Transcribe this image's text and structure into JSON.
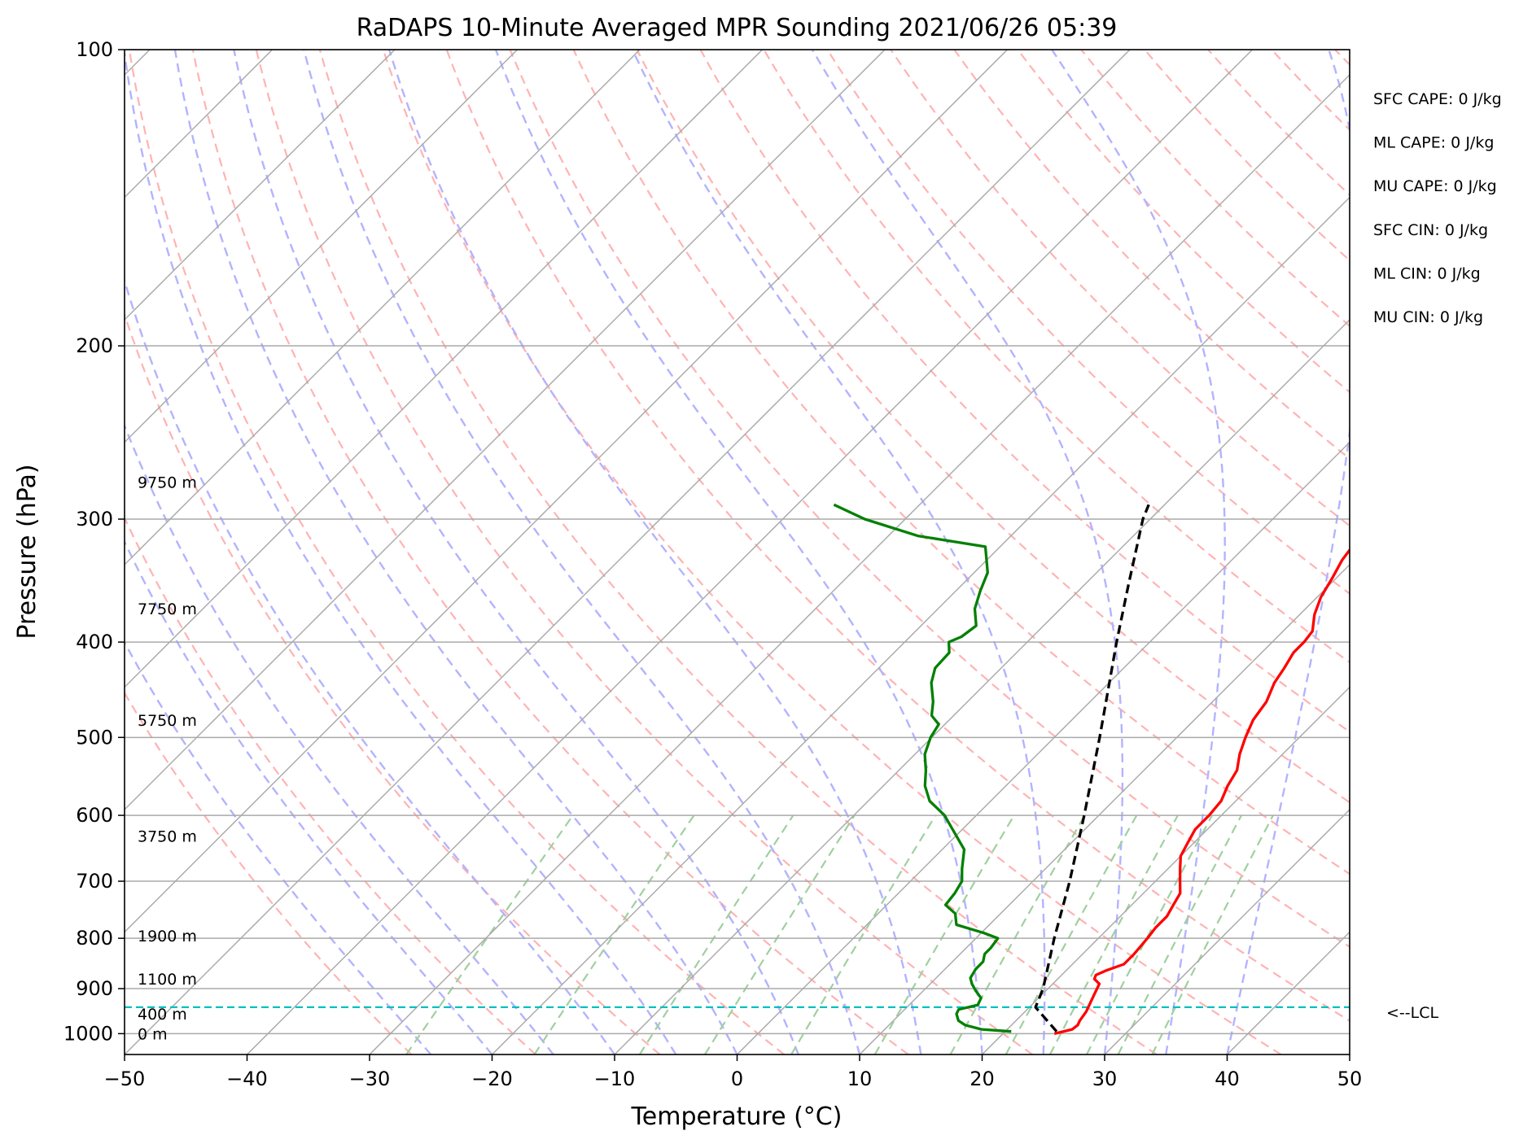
{
  "chart_data": {
    "type": "line",
    "title": "RaDAPS 10-Minute Averaged MPR Sounding 2021/06/26 05:39",
    "xlabel": "Temperature (°C)",
    "ylabel": "Pressure (hPa)",
    "xlim": [
      -50,
      50
    ],
    "ylim": [
      1050,
      100
    ],
    "yscale": "log",
    "skew": "skew-T log-p",
    "x_ticks": [
      "−50",
      "−40",
      "−30",
      "−20",
      "−10",
      "0",
      "10",
      "20",
      "30",
      "40",
      "50"
    ],
    "y_ticks": [
      "100",
      "200",
      "300",
      "400",
      "500",
      "600",
      "700",
      "800",
      "900",
      "1000"
    ],
    "grid": true,
    "reference_lines": {
      "isotherms_color": "#aaaaaa",
      "dry_adiabats_color": "#ffb3b3",
      "moist_adiabats_color": "#b3b3ff",
      "mixing_ratio_color": "#9fd09f"
    },
    "series": [
      {
        "kind": "temperature",
        "color": "#ff0000",
        "points": [
          [
            1000,
            24.2
          ],
          [
            990,
            25.3
          ],
          [
            980,
            25.4
          ],
          [
            970,
            25.2
          ],
          [
            950,
            25.0
          ],
          [
            930,
            24.6
          ],
          [
            910,
            24.2
          ],
          [
            890,
            23.8
          ],
          [
            880,
            23.0
          ],
          [
            872,
            22.8
          ],
          [
            862,
            23.3
          ],
          [
            850,
            24.2
          ],
          [
            830,
            24.2
          ],
          [
            800,
            24.0
          ],
          [
            780,
            23.8
          ],
          [
            760,
            23.8
          ],
          [
            740,
            23.4
          ],
          [
            720,
            23.0
          ],
          [
            700,
            22.0
          ],
          [
            680,
            21.0
          ],
          [
            660,
            20.0
          ],
          [
            640,
            19.5
          ],
          [
            620,
            19.0
          ],
          [
            600,
            19.0
          ],
          [
            580,
            18.8
          ],
          [
            560,
            18.1
          ],
          [
            540,
            17.6
          ],
          [
            520,
            16.5
          ],
          [
            500,
            15.6
          ],
          [
            480,
            14.8
          ],
          [
            460,
            14.4
          ],
          [
            440,
            13.5
          ],
          [
            425,
            13.1
          ],
          [
            410,
            12.6
          ],
          [
            400,
            12.6
          ],
          [
            390,
            12.4
          ],
          [
            375,
            11.2
          ],
          [
            360,
            10.3
          ],
          [
            345,
            9.7
          ],
          [
            330,
            9.0
          ],
          [
            315,
            8.6
          ],
          [
            300,
            8.2
          ],
          [
            290,
            7.5
          ]
        ]
      },
      {
        "kind": "dewpoint",
        "color": "#008000",
        "points": [
          [
            995,
            20.5
          ],
          [
            990,
            17.9
          ],
          [
            980,
            16.2
          ],
          [
            970,
            15.3
          ],
          [
            955,
            14.6
          ],
          [
            945,
            14.4
          ],
          [
            935,
            15.6
          ],
          [
            920,
            15.3
          ],
          [
            905,
            14.3
          ],
          [
            890,
            13.4
          ],
          [
            878,
            12.8
          ],
          [
            860,
            12.5
          ],
          [
            845,
            12.5
          ],
          [
            830,
            12.0
          ],
          [
            818,
            12.0
          ],
          [
            800,
            11.8
          ],
          [
            790,
            10.2
          ],
          [
            775,
            7.3
          ],
          [
            755,
            6.3
          ],
          [
            740,
            4.8
          ],
          [
            720,
            4.6
          ],
          [
            700,
            4.2
          ],
          [
            680,
            3.2
          ],
          [
            650,
            1.8
          ],
          [
            600,
            -2.6
          ],
          [
            580,
            -5.0
          ],
          [
            560,
            -6.6
          ],
          [
            540,
            -7.8
          ],
          [
            520,
            -9.2
          ],
          [
            500,
            -10.1
          ],
          [
            485,
            -10.5
          ],
          [
            475,
            -11.8
          ],
          [
            460,
            -12.8
          ],
          [
            440,
            -14.5
          ],
          [
            425,
            -15.4
          ],
          [
            410,
            -15.5
          ],
          [
            400,
            -16.4
          ],
          [
            395,
            -15.8
          ],
          [
            385,
            -15.5
          ],
          [
            370,
            -17.0
          ],
          [
            355,
            -18.0
          ],
          [
            340,
            -18.9
          ],
          [
            320,
            -21.2
          ],
          [
            312,
            -27.6
          ],
          [
            300,
            -33.3
          ],
          [
            290,
            -37.0
          ]
        ]
      },
      {
        "kind": "parcel",
        "color": "#000000",
        "points": [
          [
            995,
            24.2
          ],
          [
            940,
            20.5
          ],
          [
            900,
            19.6
          ],
          [
            800,
            16.4
          ],
          [
            700,
            13.0
          ],
          [
            600,
            8.8
          ],
          [
            500,
            3.7
          ],
          [
            400,
            -2.7
          ],
          [
            350,
            -6.4
          ],
          [
            300,
            -10.6
          ],
          [
            290,
            -11.3
          ]
        ]
      }
    ],
    "lcl": {
      "pressure": 940,
      "label": "<--LCL",
      "color": "#00bfbf"
    },
    "height_labels": [
      {
        "label": "0 m",
        "pressure": 1000
      },
      {
        "label": "400 m",
        "pressure": 955
      },
      {
        "label": "1100 m",
        "pressure": 880
      },
      {
        "label": "1900 m",
        "pressure": 795
      },
      {
        "label": "3750 m",
        "pressure": 630
      },
      {
        "label": "5750 m",
        "pressure": 480
      },
      {
        "label": "7750 m",
        "pressure": 370
      },
      {
        "label": "9750 m",
        "pressure": 275
      }
    ],
    "indices": [
      {
        "label": "SFC CAPE: 0 J/kg"
      },
      {
        "label": "ML CAPE: 0 J/kg"
      },
      {
        "label": "MU CAPE: 0 J/kg"
      },
      {
        "label": "SFC CIN: 0 J/kg"
      },
      {
        "label": "ML CIN: 0 J/kg"
      },
      {
        "label": "MU CIN: 0 J/kg"
      }
    ]
  }
}
